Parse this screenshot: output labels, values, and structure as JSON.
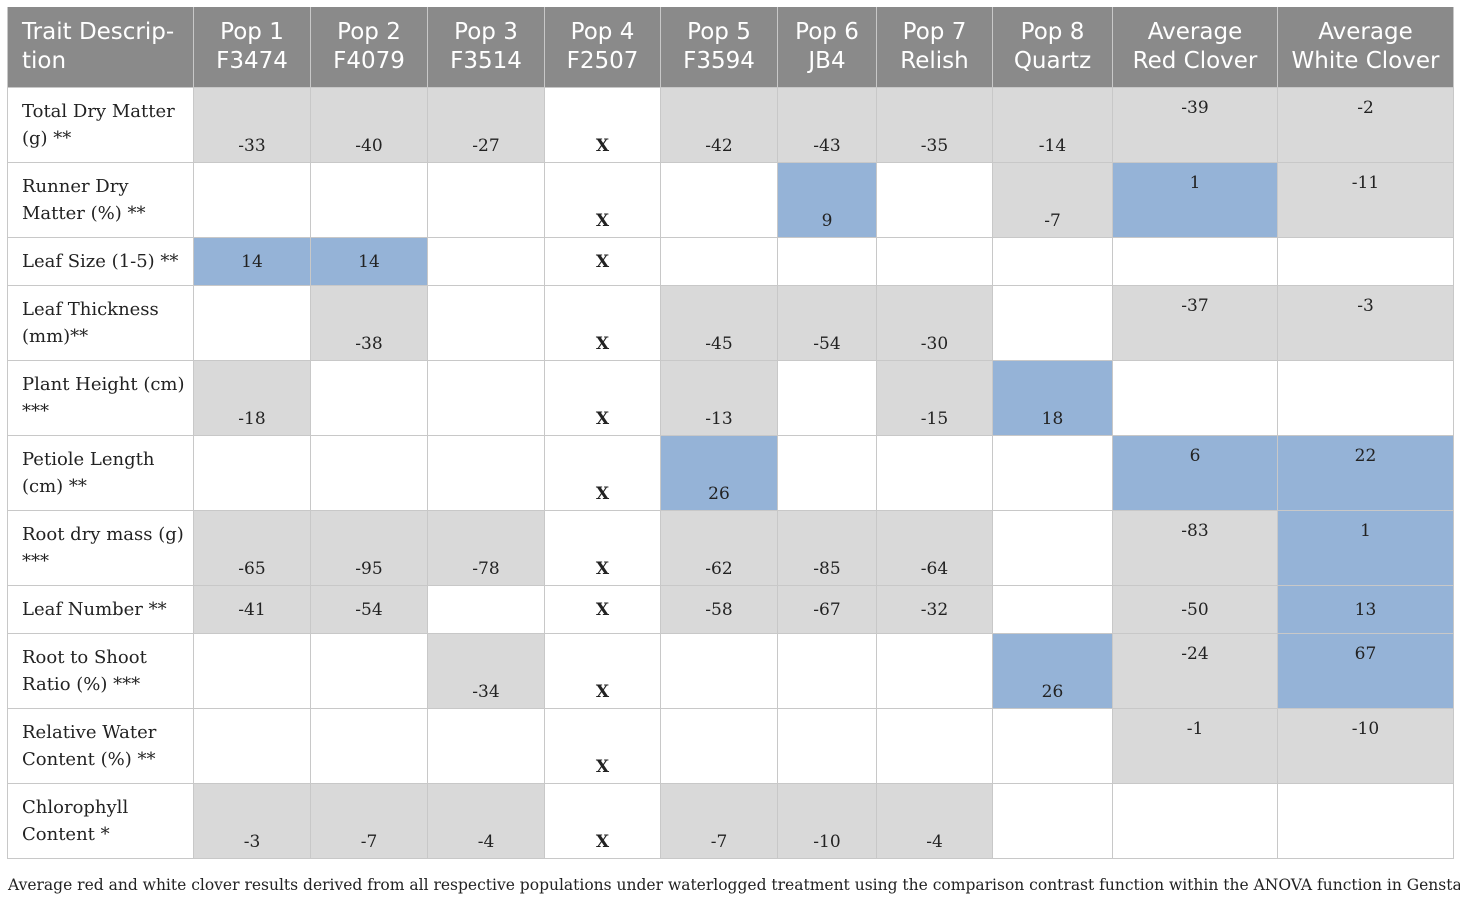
{
  "table": {
    "headers": [
      [
        "Trait Descrip-",
        "tion"
      ],
      [
        "Pop 1",
        "F3474"
      ],
      [
        "Pop 2",
        "F4079"
      ],
      [
        "Pop 3",
        "F3514"
      ],
      [
        "Pop 4",
        "F2507"
      ],
      [
        "Pop 5",
        "F3594"
      ],
      [
        "Pop 6",
        "JB4"
      ],
      [
        "Pop 7",
        "Relish"
      ],
      [
        "Pop 8",
        "Quartz"
      ],
      [
        "Average",
        "Red Clover"
      ],
      [
        "Average",
        "White Clover"
      ]
    ],
    "rows": [
      {
        "trait": [
          "Total Dry Matter",
          "(g) **"
        ],
        "cells": [
          {
            "v": "-33",
            "s": "g"
          },
          {
            "v": "-40",
            "s": "g"
          },
          {
            "v": "-27",
            "s": "g"
          },
          {
            "v": "X",
            "s": "x"
          },
          {
            "v": "-42",
            "s": "g"
          },
          {
            "v": "-43",
            "s": "g"
          },
          {
            "v": "-35",
            "s": "g"
          },
          {
            "v": "-14",
            "s": "g"
          },
          {
            "v": "-39",
            "s": "g",
            "top": true
          },
          {
            "v": "-2",
            "s": "g",
            "top": true
          }
        ]
      },
      {
        "trait": [
          "Runner Dry",
          "Matter (%) **"
        ],
        "cells": [
          {
            "v": "",
            "s": ""
          },
          {
            "v": "",
            "s": ""
          },
          {
            "v": "",
            "s": ""
          },
          {
            "v": "X",
            "s": "x"
          },
          {
            "v": "",
            "s": ""
          },
          {
            "v": "9",
            "s": "b"
          },
          {
            "v": "",
            "s": ""
          },
          {
            "v": "-7",
            "s": "g"
          },
          {
            "v": "1",
            "s": "b",
            "top": true
          },
          {
            "v": "-11",
            "s": "g",
            "top": true
          }
        ]
      },
      {
        "trait": [
          "Leaf Size (1-5) **"
        ],
        "short": true,
        "cells": [
          {
            "v": "14",
            "s": "b"
          },
          {
            "v": "14",
            "s": "b"
          },
          {
            "v": "",
            "s": ""
          },
          {
            "v": "X",
            "s": "x"
          },
          {
            "v": "",
            "s": ""
          },
          {
            "v": "",
            "s": ""
          },
          {
            "v": "",
            "s": ""
          },
          {
            "v": "",
            "s": ""
          },
          {
            "v": "",
            "s": ""
          },
          {
            "v": "",
            "s": ""
          }
        ]
      },
      {
        "trait": [
          "Leaf Thickness",
          "(mm)**"
        ],
        "cells": [
          {
            "v": "",
            "s": ""
          },
          {
            "v": "-38",
            "s": "g"
          },
          {
            "v": "",
            "s": ""
          },
          {
            "v": "X",
            "s": "x"
          },
          {
            "v": "-45",
            "s": "g"
          },
          {
            "v": "-54",
            "s": "g"
          },
          {
            "v": "-30",
            "s": "g"
          },
          {
            "v": "",
            "s": ""
          },
          {
            "v": "-37",
            "s": "g",
            "top": true
          },
          {
            "v": "-3",
            "s": "g",
            "top": true
          }
        ]
      },
      {
        "trait": [
          "Plant Height (cm)",
          "***"
        ],
        "cells": [
          {
            "v": "-18",
            "s": "g"
          },
          {
            "v": "",
            "s": ""
          },
          {
            "v": "",
            "s": ""
          },
          {
            "v": "X",
            "s": "x"
          },
          {
            "v": "-13",
            "s": "g"
          },
          {
            "v": "",
            "s": ""
          },
          {
            "v": "-15",
            "s": "g"
          },
          {
            "v": "18",
            "s": "b"
          },
          {
            "v": "",
            "s": ""
          },
          {
            "v": "",
            "s": ""
          }
        ]
      },
      {
        "trait": [
          "Petiole Length",
          "(cm) **"
        ],
        "cells": [
          {
            "v": "",
            "s": ""
          },
          {
            "v": "",
            "s": ""
          },
          {
            "v": "",
            "s": ""
          },
          {
            "v": "X",
            "s": "x"
          },
          {
            "v": "26",
            "s": "b"
          },
          {
            "v": "",
            "s": ""
          },
          {
            "v": "",
            "s": ""
          },
          {
            "v": "",
            "s": ""
          },
          {
            "v": "6",
            "s": "b",
            "top": true
          },
          {
            "v": "22",
            "s": "b",
            "top": true
          }
        ]
      },
      {
        "trait": [
          "Root dry mass (g)",
          "***"
        ],
        "cells": [
          {
            "v": "-65",
            "s": "g"
          },
          {
            "v": "-95",
            "s": "g"
          },
          {
            "v": "-78",
            "s": "g"
          },
          {
            "v": "X",
            "s": "x"
          },
          {
            "v": "-62",
            "s": "g"
          },
          {
            "v": "-85",
            "s": "g"
          },
          {
            "v": "-64",
            "s": "g"
          },
          {
            "v": "",
            "s": ""
          },
          {
            "v": "-83",
            "s": "g",
            "top": true
          },
          {
            "v": "1",
            "s": "b",
            "top": true
          }
        ]
      },
      {
        "trait": [
          "Leaf Number **"
        ],
        "short": true,
        "cells": [
          {
            "v": "-41",
            "s": "g"
          },
          {
            "v": "-54",
            "s": "g"
          },
          {
            "v": "",
            "s": ""
          },
          {
            "v": "X",
            "s": "x"
          },
          {
            "v": "-58",
            "s": "g"
          },
          {
            "v": "-67",
            "s": "g"
          },
          {
            "v": "-32",
            "s": "g"
          },
          {
            "v": "",
            "s": ""
          },
          {
            "v": "-50",
            "s": "g"
          },
          {
            "v": "13",
            "s": "b"
          }
        ]
      },
      {
        "trait": [
          "Root to Shoot",
          "Ratio (%) ***"
        ],
        "cells": [
          {
            "v": "",
            "s": ""
          },
          {
            "v": "",
            "s": ""
          },
          {
            "v": "-34",
            "s": "g"
          },
          {
            "v": "X",
            "s": "x"
          },
          {
            "v": "",
            "s": ""
          },
          {
            "v": "",
            "s": ""
          },
          {
            "v": "",
            "s": ""
          },
          {
            "v": "26",
            "s": "b"
          },
          {
            "v": "-24",
            "s": "g",
            "top": true
          },
          {
            "v": "67",
            "s": "b",
            "top": true
          }
        ]
      },
      {
        "trait": [
          "Relative Water",
          "Content (%) **"
        ],
        "cells": [
          {
            "v": "",
            "s": ""
          },
          {
            "v": "",
            "s": ""
          },
          {
            "v": "",
            "s": ""
          },
          {
            "v": "X",
            "s": "x"
          },
          {
            "v": "",
            "s": ""
          },
          {
            "v": "",
            "s": ""
          },
          {
            "v": "",
            "s": ""
          },
          {
            "v": "",
            "s": ""
          },
          {
            "v": "-1",
            "s": "g",
            "top": true
          },
          {
            "v": "-10",
            "s": "g",
            "top": true
          }
        ]
      },
      {
        "trait": [
          "Chlorophyll",
          "Content *"
        ],
        "cells": [
          {
            "v": "-3",
            "s": "g"
          },
          {
            "v": "-7",
            "s": "g"
          },
          {
            "v": "-4",
            "s": "g"
          },
          {
            "v": "X",
            "s": "x"
          },
          {
            "v": "-7",
            "s": "g"
          },
          {
            "v": "-10",
            "s": "g"
          },
          {
            "v": "-4",
            "s": "g"
          },
          {
            "v": "",
            "s": ""
          },
          {
            "v": "",
            "s": ""
          },
          {
            "v": "",
            "s": ""
          }
        ]
      }
    ],
    "colors": {
      "header_bg": "#8a8a8a",
      "grey_cell": "#d9d9d9",
      "blue_cell": "#95b3d7"
    }
  },
  "footnote": "Average red and white clover results derived from all respective populations under waterlogged treatment using the comparison contrast function within the ANOVA function in Genstat."
}
